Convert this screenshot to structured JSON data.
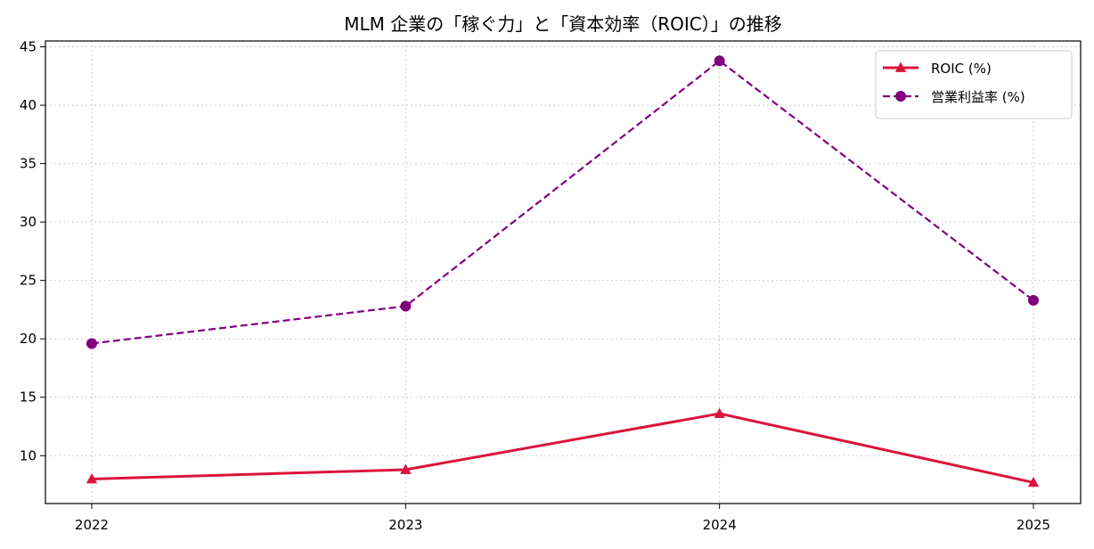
{
  "chart_data": {
    "type": "line",
    "title": "MLM 企業の「稼ぐ力」と「資本効率（ROIC）」の推移",
    "xlabel": "",
    "ylabel": "",
    "x": [
      "2022",
      "2023",
      "2024",
      "2025"
    ],
    "ylim": [
      5.9,
      45.5
    ],
    "yticks": [
      10,
      15,
      20,
      25,
      30,
      35,
      40,
      45
    ],
    "grid": true,
    "legend_position": "top-right",
    "series": [
      {
        "name": "ROIC (%)",
        "values": [
          8.0,
          8.8,
          13.6,
          7.7
        ],
        "color": "#dc143c",
        "marker": "triangle",
        "line_style": "solid"
      },
      {
        "name": "営業利益率 (%)",
        "values": [
          19.6,
          22.8,
          43.8,
          23.3
        ],
        "color": "#800080",
        "marker": "circle",
        "line_style": "dashed"
      }
    ]
  }
}
